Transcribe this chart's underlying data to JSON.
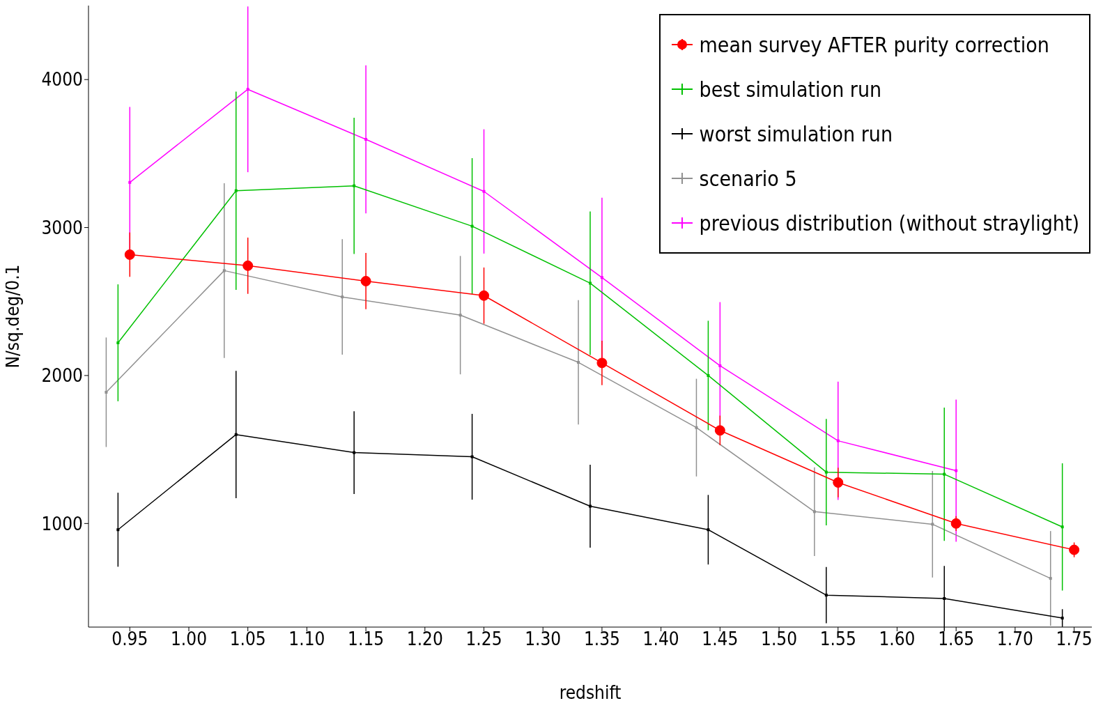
{
  "chart_data": {
    "type": "line",
    "xlabel": "redshift",
    "ylabel": "N/sq.deg/0.1",
    "xlim": [
      0.915,
      1.765
    ],
    "ylim": [
      300,
      4500
    ],
    "xticks": [
      {
        "value": 0.95,
        "label": "0.95"
      },
      {
        "value": 1.0,
        "label": "1.00"
      },
      {
        "value": 1.05,
        "label": "1.05"
      },
      {
        "value": 1.1,
        "label": "1.10"
      },
      {
        "value": 1.15,
        "label": "1.15"
      },
      {
        "value": 1.2,
        "label": "1.20"
      },
      {
        "value": 1.25,
        "label": "1.25"
      },
      {
        "value": 1.3,
        "label": "1.30"
      },
      {
        "value": 1.35,
        "label": "1.35"
      },
      {
        "value": 1.4,
        "label": "1.40"
      },
      {
        "value": 1.45,
        "label": "1.45"
      },
      {
        "value": 1.5,
        "label": "1.50"
      },
      {
        "value": 1.55,
        "label": "1.55"
      },
      {
        "value": 1.6,
        "label": "1.60"
      },
      {
        "value": 1.65,
        "label": "1.65"
      },
      {
        "value": 1.7,
        "label": "1.70"
      },
      {
        "value": 1.75,
        "label": "1.75"
      }
    ],
    "yticks": [
      1000,
      2000,
      3000,
      4000
    ],
    "grid": false,
    "legend": "top right",
    "series": [
      {
        "name": "mean survey AFTER purity correction",
        "color": "#ff0000",
        "marker": "circle",
        "x": [
          0.95,
          1.05,
          1.15,
          1.25,
          1.35,
          1.45,
          1.55,
          1.65,
          1.75
        ],
        "values": [
          2817,
          2742,
          2638,
          2540,
          2085,
          1629,
          1277,
          1000,
          822
        ],
        "errors": [
          150,
          190,
          190,
          190,
          150,
          100,
          100,
          50,
          50
        ]
      },
      {
        "name": "best simulation run",
        "color": "#00c000",
        "marker": "square",
        "x": [
          0.94,
          1.04,
          1.14,
          1.24,
          1.34,
          1.44,
          1.54,
          1.64,
          1.74
        ],
        "values": [
          2221,
          3249,
          3282,
          3009,
          2624,
          2000,
          1347,
          1333,
          977
        ],
        "errors": [
          395,
          670,
          460,
          460,
          485,
          370,
          360,
          450,
          430
        ]
      },
      {
        "name": "worst simulation run",
        "color": "#000000",
        "marker": "square",
        "x": [
          0.94,
          1.04,
          1.14,
          1.24,
          1.34,
          1.44,
          1.54,
          1.64,
          1.74
        ],
        "values": [
          958,
          1601,
          1479,
          1451,
          1117,
          958,
          516,
          493,
          361
        ],
        "errors": [
          250,
          430,
          280,
          290,
          280,
          235,
          190,
          220,
          60
        ]
      },
      {
        "name": "scenario 5",
        "color": "#909090",
        "marker": "square",
        "x": [
          0.93,
          1.03,
          1.13,
          1.23,
          1.33,
          1.43,
          1.53,
          1.63,
          1.73
        ],
        "values": [
          1887,
          2709,
          2531,
          2408,
          2089,
          1648,
          1080,
          995,
          629
        ],
        "errors": [
          370,
          590,
          390,
          400,
          420,
          330,
          300,
          360,
          320
        ]
      },
      {
        "name": "previous distribution (without straylight)",
        "color": "#ff00ff",
        "marker": "square",
        "x": [
          0.95,
          1.05,
          1.15,
          1.25,
          1.35,
          1.45,
          1.55,
          1.65
        ],
        "values": [
          3305,
          3934,
          3596,
          3244,
          2662,
          2066,
          1559,
          1357
        ],
        "errors": [
          510,
          560,
          500,
          420,
          540,
          430,
          400,
          480
        ]
      }
    ]
  }
}
